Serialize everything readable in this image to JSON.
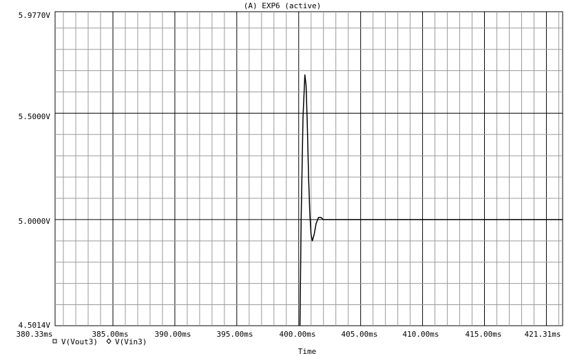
{
  "window": {
    "title": "(A) EXP6 (active)"
  },
  "chart_data": {
    "type": "line",
    "title": "(A) EXP6 (active)",
    "xlabel": "Time",
    "ylabel": "",
    "xlim": [
      380.33,
      421.31
    ],
    "ylim": [
      4.5014,
      5.977
    ],
    "x_unit": "ms",
    "grid": true,
    "x_tick_labels": [
      "380.33ms",
      "385.00ms",
      "390.00ms",
      "395.00ms",
      "400.00ms",
      "405.00ms",
      "410.00ms",
      "415.00ms",
      "421.31ms"
    ],
    "y_tick_labels": [
      "4.5014V",
      "5.0000V",
      "5.5000V",
      "5.9770V"
    ],
    "legend": [
      {
        "marker": "square",
        "label": "V(Vout3)"
      },
      {
        "marker": "diamond",
        "label": "V(Vin3)"
      }
    ],
    "series": [
      {
        "label": "V(Vout3)",
        "color": "#000000",
        "x": [
          400.1,
          400.2,
          400.35,
          400.5,
          400.6,
          400.7,
          400.8,
          400.9,
          401.0,
          401.1,
          401.25,
          401.4,
          401.6,
          401.8,
          402.0,
          402.3,
          403,
          421.31
        ],
        "y": [
          4.5014,
          5.0,
          5.48,
          5.68,
          5.63,
          5.44,
          5.2,
          5.03,
          4.93,
          4.9,
          4.93,
          4.98,
          5.01,
          5.01,
          5.0,
          5.0,
          5.0,
          5.0
        ]
      }
    ]
  }
}
